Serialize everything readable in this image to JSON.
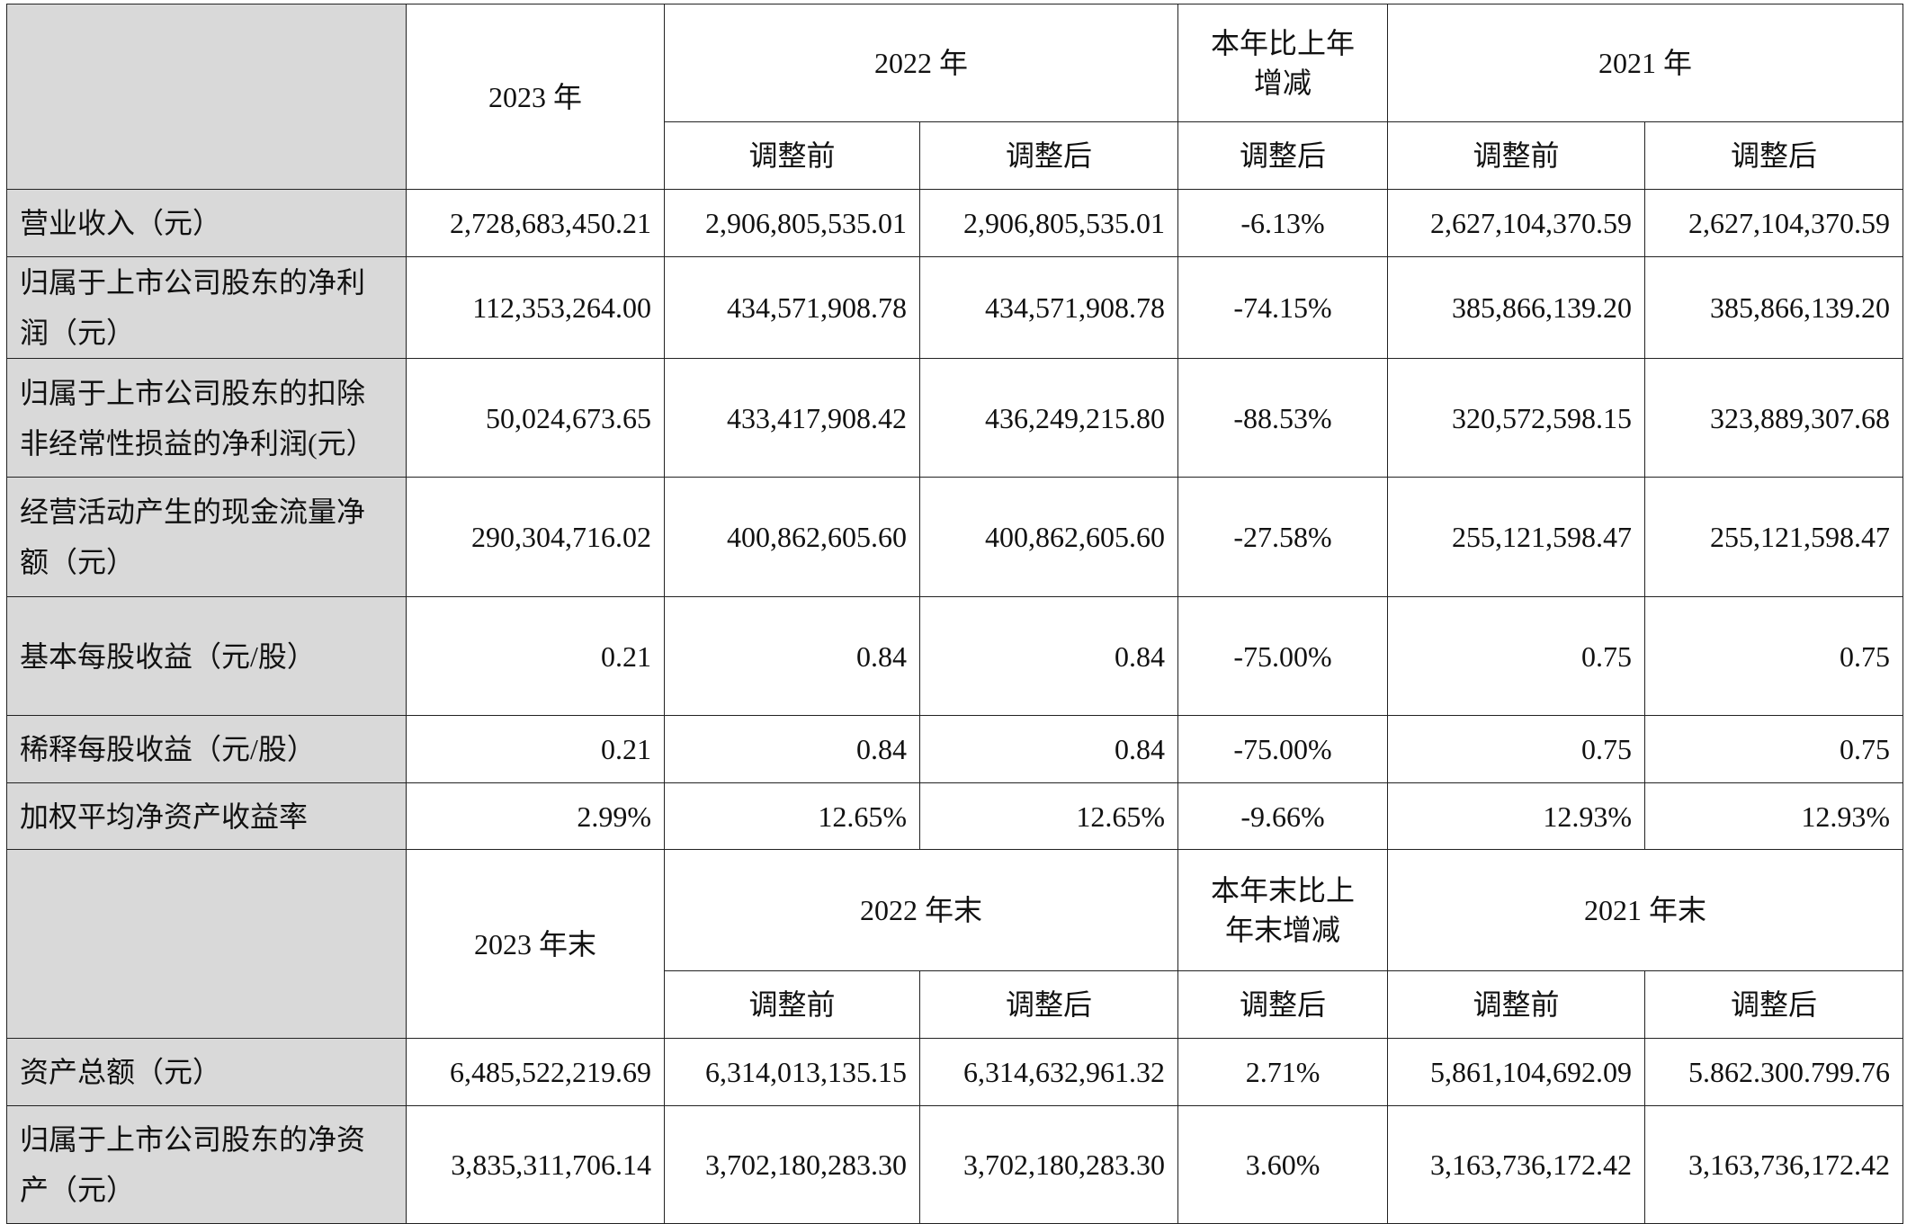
{
  "header1": {
    "current": "2023 年",
    "prior": "2022 年",
    "change": [
      "本年比上年",
      "增减"
    ],
    "older": "2021 年",
    "sub": [
      "调整前",
      "调整后",
      "调整后",
      "调整前",
      "调整后"
    ]
  },
  "rows1": [
    {
      "label": "营业收入（元）",
      "values": [
        "2,728,683,450.21",
        "2,906,805,535.01",
        "2,906,805,535.01",
        "-6.13%",
        "2,627,104,370.59",
        "2,627,104,370.59"
      ]
    },
    {
      "label": "归属于上市公司股东的净利润（元）",
      "values": [
        "112,353,264.00",
        "434,571,908.78",
        "434,571,908.78",
        "-74.15%",
        "385,866,139.20",
        "385,866,139.20"
      ]
    },
    {
      "label": "归属于上市公司股东的扣除非经常性损益的净利润(元）",
      "values": [
        "50,024,673.65",
        "433,417,908.42",
        "436,249,215.80",
        "-88.53%",
        "320,572,598.15",
        "323,889,307.68"
      ]
    },
    {
      "label": "经营活动产生的现金流量净额（元）",
      "values": [
        "290,304,716.02",
        "400,862,605.60",
        "400,862,605.60",
        "-27.58%",
        "255,121,598.47",
        "255,121,598.47"
      ]
    },
    {
      "label": "基本每股收益（元/股）",
      "values": [
        "0.21",
        "0.84",
        "0.84",
        "-75.00%",
        "0.75",
        "0.75"
      ]
    },
    {
      "label": "稀释每股收益（元/股）",
      "values": [
        "0.21",
        "0.84",
        "0.84",
        "-75.00%",
        "0.75",
        "0.75"
      ]
    },
    {
      "label": "加权平均净资产收益率",
      "values": [
        "2.99%",
        "12.65%",
        "12.65%",
        "-9.66%",
        "12.93%",
        "12.93%"
      ]
    }
  ],
  "header2": {
    "current": "2023 年末",
    "prior": "2022 年末",
    "change": [
      "本年末比上",
      "年末增减"
    ],
    "older": "2021 年末",
    "sub": [
      "调整前",
      "调整后",
      "调整后",
      "调整前",
      "调整后"
    ]
  },
  "rows2": [
    {
      "label": "资产总额（元）",
      "values": [
        "6,485,522,219.69",
        "6,314,013,135.15",
        "6,314,632,961.32",
        "2.71%",
        "5,861,104,692.09",
        "5.862.300.799.76"
      ]
    },
    {
      "label": "归属于上市公司股东的净资产（元）",
      "values": [
        "3,835,311,706.14",
        "3,702,180,283.30",
        "3,702,180,283.30",
        "3.60%",
        "3,163,736,172.42",
        "3,163,736,172.42"
      ]
    }
  ]
}
